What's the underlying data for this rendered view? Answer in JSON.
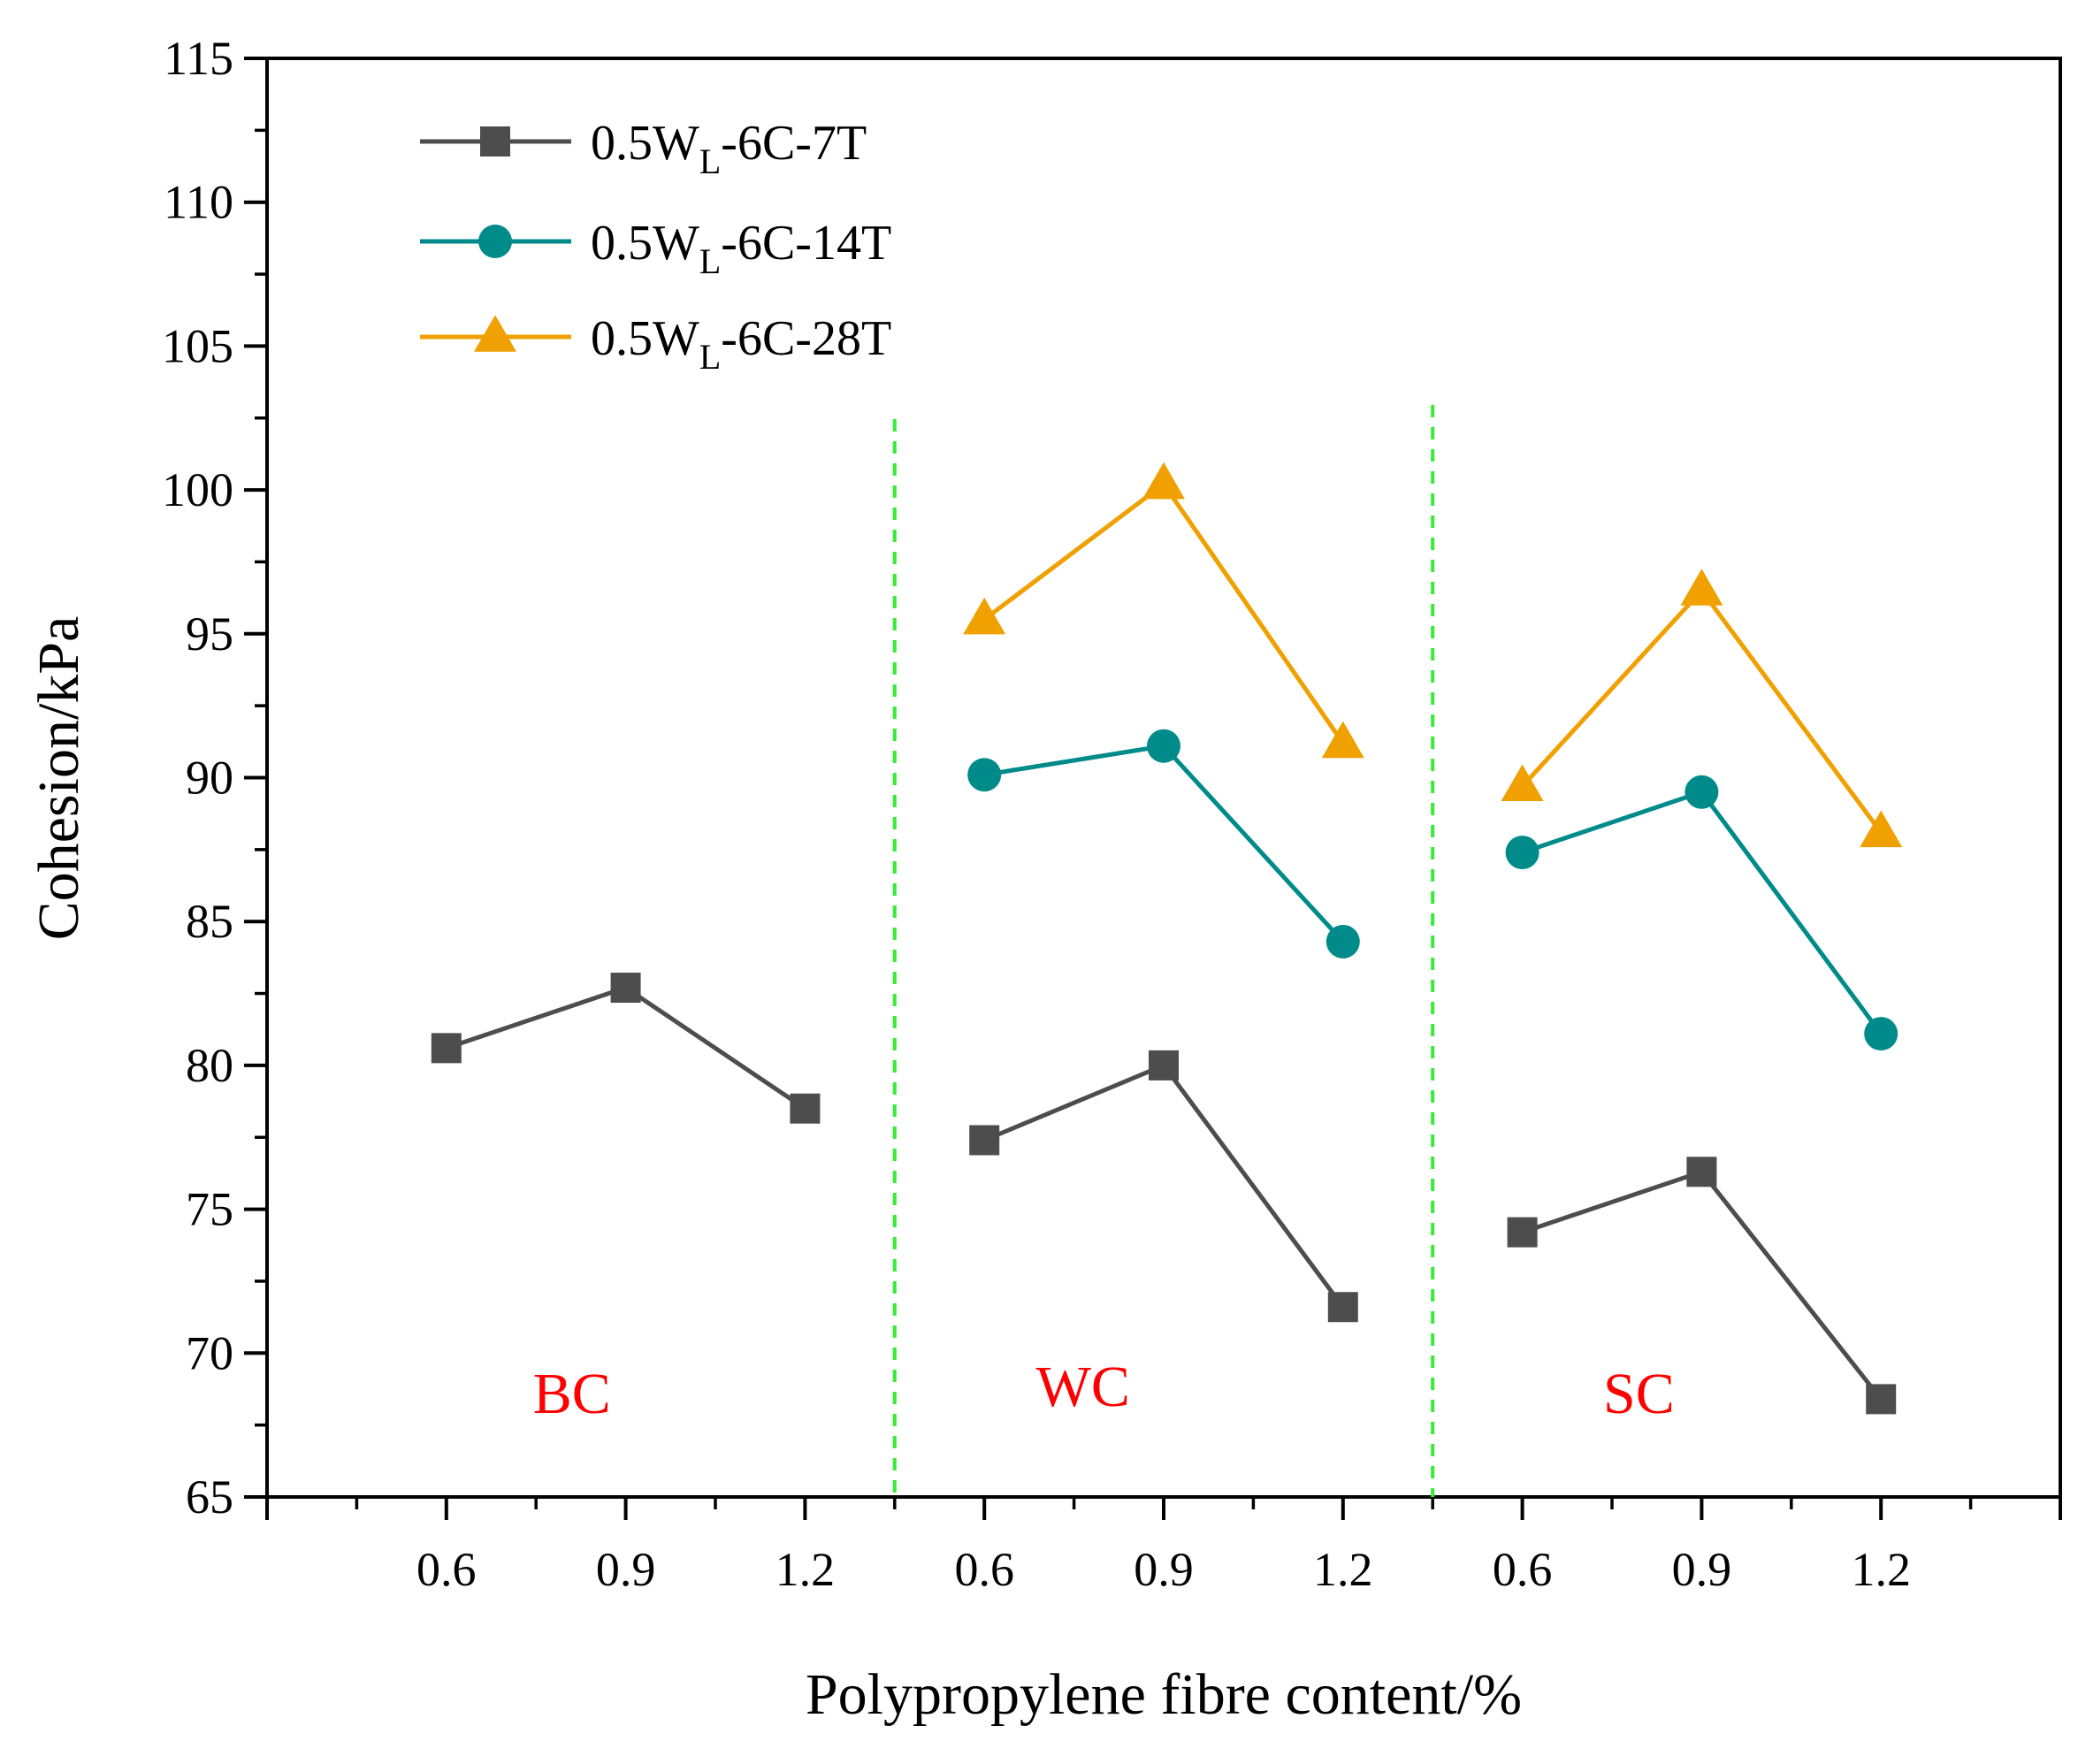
{
  "chart_data": {
    "type": "line",
    "title": "",
    "xlabel": "Polypropylene fibre content/%",
    "ylabel": "Cohesion/kPa",
    "ylim": [
      65,
      115
    ],
    "yticks": [
      65,
      70,
      75,
      80,
      85,
      90,
      95,
      100,
      105,
      110,
      115
    ],
    "y_minor_step": 2.5,
    "x_positions": 10,
    "x_tick_labels": [
      "0.6",
      "0.9",
      "1.2",
      "0.6",
      "0.9",
      "1.2",
      "0.6",
      "0.9",
      "1.2"
    ],
    "groups": [
      {
        "label": "BC",
        "color": "#ff0000",
        "categories": [
          "0.6",
          "0.9",
          "1.2"
        ]
      },
      {
        "label": "WC",
        "color": "#ff0000",
        "categories": [
          "0.6",
          "0.9",
          "1.2"
        ]
      },
      {
        "label": "SC",
        "color": "#ff0000",
        "categories": [
          "0.6",
          "0.9",
          "1.2"
        ]
      }
    ],
    "series": [
      {
        "name": "0.5W_L-6C-7T",
        "legend_main": "0.5W",
        "legend_sub": "L",
        "legend_rest": "-6C-7T",
        "color": "#4d4d4d",
        "marker": "square",
        "segments": [
          [
            80.6,
            82.7,
            78.5
          ],
          [
            77.4,
            80.0,
            71.6
          ],
          [
            74.2,
            76.3,
            68.4
          ]
        ]
      },
      {
        "name": "0.5W_L-6C-14T",
        "legend_main": "0.5W",
        "legend_sub": "L",
        "legend_rest": "-6C-14T",
        "color": "#008b8b",
        "marker": "circle",
        "segments": [
          null,
          [
            90.1,
            91.1,
            84.3
          ],
          [
            87.4,
            89.5,
            81.1
          ]
        ]
      },
      {
        "name": "0.5W_L-6C-28T",
        "legend_main": "0.5W",
        "legend_sub": "L",
        "legend_rest": "-6C-28T",
        "color": "#f0a000",
        "marker": "triangle",
        "segments": [
          null,
          [
            95.5,
            100.2,
            91.2
          ],
          [
            89.7,
            96.5,
            88.1
          ]
        ]
      }
    ],
    "separators": {
      "color": "#33ee33",
      "style": "dashed"
    }
  }
}
